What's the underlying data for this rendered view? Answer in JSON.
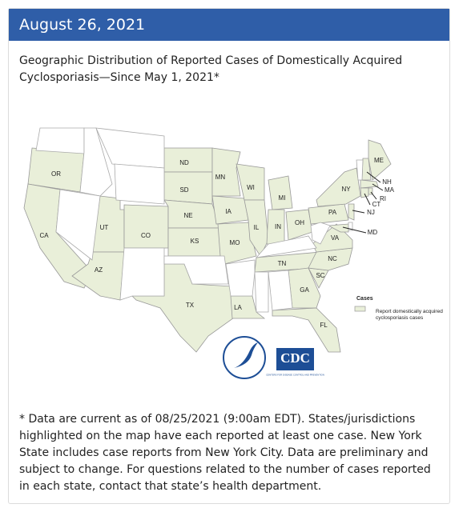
{
  "header": {
    "date": "August 26, 2021"
  },
  "caption": "Geographic Distribution of Reported Cases of Domestically Acquired Cyclosporiasis—Since May 1, 2021*",
  "map": {
    "states": [
      "OR",
      "CA",
      "UT",
      "AZ",
      "CO",
      "ND",
      "SD",
      "NE",
      "KS",
      "TX",
      "MN",
      "IA",
      "MO",
      "WI",
      "IL",
      "MI",
      "IN",
      "OH",
      "TN",
      "LA",
      "GA",
      "FL",
      "SC",
      "NC",
      "VA",
      "PA",
      "NY",
      "ME",
      "NH",
      "MA",
      "RI",
      "CT",
      "NJ",
      "MD"
    ],
    "legend": {
      "title": "Cases",
      "label": "Report domestically acquired cyclosporiasis cases"
    },
    "logo": {
      "name": "CDC",
      "tagline": "CENTERS FOR DISEASE CONTROL AND PREVENTION"
    }
  },
  "footnote": "* Data are current as of 08/25/2021 (9:00am EDT). States/jurisdictions highlighted on the map have each reported at least one case. New York State includes case reports from New York City. Data are preliminary and subject to change. For questions related to the number of cases reported in each state, contact that state’s health department."
}
